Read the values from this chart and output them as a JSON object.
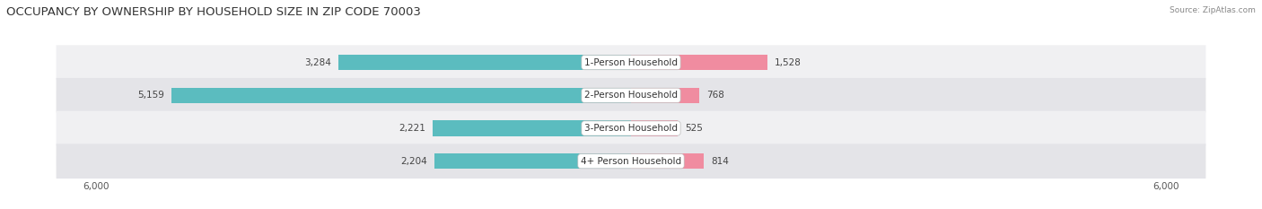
{
  "title": "OCCUPANCY BY OWNERSHIP BY HOUSEHOLD SIZE IN ZIP CODE 70003",
  "source": "Source: ZipAtlas.com",
  "categories": [
    "1-Person Household",
    "2-Person Household",
    "3-Person Household",
    "4+ Person Household"
  ],
  "owner_values": [
    3284,
    5159,
    2221,
    2204
  ],
  "renter_values": [
    1528,
    768,
    525,
    814
  ],
  "owner_color": "#5bbcbf",
  "renter_color": "#f08ca0",
  "axis_max": 6000,
  "row_bg_light": "#f0f0f2",
  "row_bg_dark": "#e4e4e8",
  "title_fontsize": 9.5,
  "label_fontsize": 7.5,
  "cat_fontsize": 7.5,
  "tick_fontsize": 7.5,
  "source_fontsize": 6.5,
  "background_color": "#ffffff"
}
